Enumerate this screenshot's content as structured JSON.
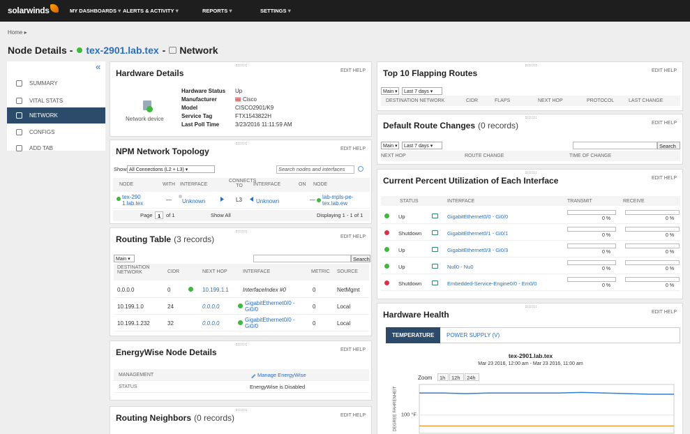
{
  "nav": {
    "logo": "solarwinds",
    "menu": [
      "MY DASHBOARDS",
      "ALERTS & ACTIVITY",
      "REPORTS",
      "SETTINGS"
    ]
  },
  "breadcrumb": "Home",
  "page_title": {
    "prefix": "Node Details -",
    "node": "tex-2901.lab.tex",
    "sep": "-",
    "view": "Network"
  },
  "sidebar": {
    "collapse": "«",
    "items": [
      "SUMMARY",
      "VITAL STATS",
      "NETWORK",
      "CONFIGS",
      "ADD TAB"
    ],
    "active": 2
  },
  "hardware_details": {
    "title": "Hardware Details",
    "actions": "EDIT HELP",
    "device_label": "Network device",
    "fields": [
      [
        "Hardware Status",
        "Up"
      ],
      [
        "Manufacturer",
        "Cisco"
      ],
      [
        "Model",
        "CISCO2901/K9"
      ],
      [
        "Service Tag",
        "FTX1543822H"
      ],
      [
        "Last Poll Time",
        "3/23/2016 11:11:59 AM"
      ]
    ]
  },
  "topology": {
    "title": "NPM Network Topology",
    "actions": "EDIT HELP",
    "show_label": "Show",
    "filter": "All Connections (L2 + L3)",
    "search_placeholder": "Search nodes and interfaces",
    "columns": [
      "NODE",
      "WITH",
      "INTERFACE",
      "CONNECTS TO",
      "INTERFACE",
      "ON",
      "NODE"
    ],
    "rows": [
      [
        "tex-2901.lab.tex",
        "—",
        "Unknown",
        "L3",
        "Unknown",
        "—",
        "lab-mpls-pe-tex.lab.ew"
      ]
    ],
    "pager": {
      "page_label": "Page",
      "page": "1",
      "of": "of 1",
      "show_all": "Show All",
      "displaying": "Displaying 1 - 1 of 1"
    }
  },
  "routing_table": {
    "title": "Routing Table",
    "count": "(3 records)",
    "actions": "EDIT HELP",
    "filter": "Main",
    "search": "Search",
    "columns": [
      "DESTINATION NETWORK",
      "CIDR",
      "NEXT HOP",
      "INTERFACE",
      "METRIC",
      "SOURCE"
    ],
    "rows": [
      [
        "0.0.0.0",
        "0",
        "10.199.1.1",
        "InterfaceIndex #0",
        "0",
        "NetMgmt"
      ],
      [
        "10.199.1.0",
        "24",
        "0.0.0.0",
        "GigabitEthernet0/0 - Gi0/0",
        "0",
        "Local"
      ],
      [
        "10.199.1.232",
        "32",
        "0.0.0.0",
        "GigabitEthernet0/0 - Gi0/0",
        "0",
        "Local"
      ]
    ]
  },
  "energywise": {
    "title": "EnergyWise Node Details",
    "actions": "EDIT HELP",
    "rows": [
      [
        "MANAGEMENT",
        "Manage EnergyWise"
      ],
      [
        "STATUS",
        "EnergyWise is Disabled"
      ]
    ]
  },
  "routing_neighbors": {
    "title": "Routing Neighbors",
    "count": "(0 records)",
    "actions": "EDIT HELP"
  },
  "flapping": {
    "title": "Top 10 Flapping Routes",
    "actions": "EDIT HELP",
    "filter": "Main",
    "period": "Last 7 days",
    "columns": [
      "DESTINATION NETWORK",
      "CIDR",
      "FLAPS",
      "NEXT HOP",
      "PROTOCOL",
      "LAST CHANGE"
    ]
  },
  "default_route": {
    "title": "Default Route Changes",
    "count": "(0 records)",
    "actions": "EDIT HELP",
    "filter": "Main",
    "period": "Last 7 days",
    "search": "Search",
    "columns": [
      "NEXT HOP",
      "ROUTE CHANGE",
      "TIME OF CHANGE"
    ]
  },
  "utilization": {
    "title": "Current Percent Utilization of Each Interface",
    "actions": "EDIT HELP",
    "columns": [
      "STATUS",
      "INTERFACE",
      "TRANSMIT",
      "RECEIVE"
    ],
    "rows": [
      [
        "Up",
        "GigabitEthernet0/0 - Gi0/0",
        "0 %",
        "0 %"
      ],
      [
        "Shutdown",
        "GigabitEthernet0/1 - Gi0/1",
        "0 %",
        "0 %"
      ],
      [
        "Up",
        "GigabitEthernet0/3 - Gi0/3",
        "0 %",
        "0 %"
      ],
      [
        "Up",
        "Null0 - Nu0",
        "0 %",
        "0 %"
      ],
      [
        "Shutdown",
        "Embedded-Service-Engine0/0 - Em0/0",
        "0 %",
        "0 %"
      ]
    ]
  },
  "hardware_health": {
    "title": "Hardware Health",
    "actions": "EDIT HELP",
    "tabs": [
      "TEMPERATURE",
      "POWER SUPPLY (V)"
    ],
    "active_tab": 0,
    "zoom_label": "Zoom",
    "zoom": [
      "1h",
      "12h",
      "24h"
    ],
    "chart_data": {
      "type": "line",
      "title": "tex-2901.lab.tex",
      "subtitle": "Mar 23 2016, 12:00 am - Mar 23 2016, 11:00 am",
      "y_label": "DEGREE FAHRENHEIT",
      "ylim": [
        85,
        125
      ],
      "yticks": [
        {
          "value": 100,
          "label": "100 °F"
        }
      ],
      "series": [
        {
          "color": "#2f7ed8",
          "values": [
            118,
            118,
            117.5,
            118,
            118,
            118,
            118,
            118.5,
            118,
            117.5,
            117,
            117
          ]
        },
        {
          "color": "#e0a030",
          "values": [
            91,
            91,
            91,
            91,
            91,
            91,
            91,
            91,
            91,
            91,
            91,
            91
          ]
        }
      ]
    }
  }
}
